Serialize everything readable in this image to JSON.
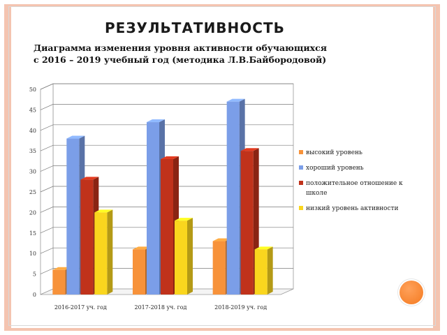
{
  "slide": {
    "title": "РЕЗУЛЬТАТИВНОСТЬ",
    "subtitle_line1": "Диаграмма изменения уровня активности обучающихся",
    "subtitle_line2": "с 2016 – 2019  учебный год (методика Л.В.Байбородовой)"
  },
  "colors": {
    "frame": "#f4c4b0",
    "accent_circle": "#f47a20"
  },
  "chart_data": {
    "type": "bar",
    "style": "3d-clustered",
    "categories": [
      "2016-2017 уч. год",
      "2017-2018 уч. год",
      "2018-2019 уч. год"
    ],
    "series": [
      {
        "name": "высокий уровень",
        "values": [
          6,
          11,
          13
        ],
        "color": "#f7923a"
      },
      {
        "name": "хороший уровень",
        "values": [
          38,
          42,
          47
        ],
        "color": "#7b9ee8"
      },
      {
        "name": "положительное отношение к школе",
        "values": [
          28,
          33,
          35
        ],
        "color": "#c0321b"
      },
      {
        "name": "низкий уровень активности",
        "values": [
          20,
          18,
          11
        ],
        "color": "#fad61e"
      }
    ],
    "ylim": [
      0,
      50
    ],
    "yticks": [
      0,
      5,
      10,
      15,
      20,
      25,
      30,
      35,
      40,
      45,
      50
    ],
    "grid": true,
    "legend": "right"
  }
}
